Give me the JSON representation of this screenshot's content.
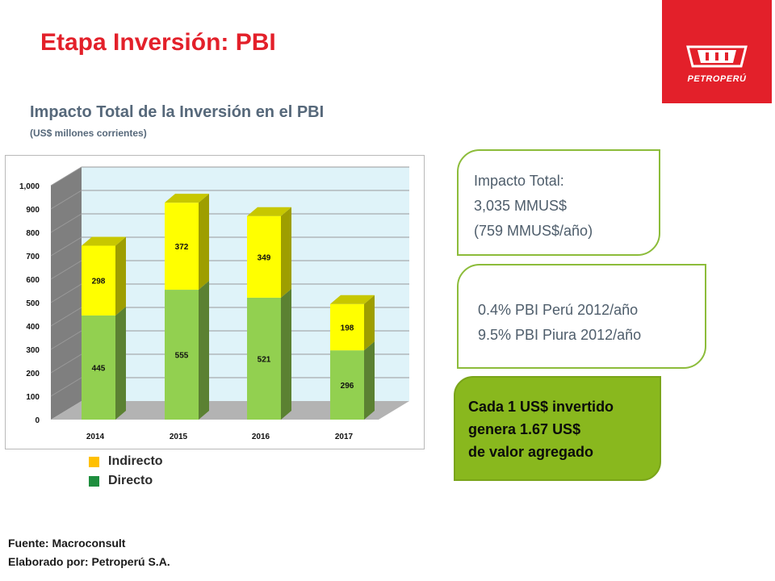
{
  "slide": {
    "title": "Etapa Inversión: PBI",
    "logo_text": "PETROPERÚ"
  },
  "chart_data": {
    "type": "bar",
    "stacked": true,
    "three_d": true,
    "title": "Impacto Total de la Inversión en el PBI",
    "subtitle": "(US$ millones corrientes)",
    "categories": [
      "2014",
      "2015",
      "2016",
      "2017"
    ],
    "series": [
      {
        "name": "Directo",
        "values": [
          445,
          555,
          521,
          296
        ],
        "color": "#92d050"
      },
      {
        "name": "Indirecto",
        "values": [
          298,
          372,
          349,
          198
        ],
        "color": "#ffff00"
      }
    ],
    "ylim": [
      0,
      1000
    ],
    "y_ticks": [
      "0",
      "100",
      "200",
      "300",
      "400",
      "500",
      "600",
      "700",
      "800",
      "900",
      "1,000"
    ],
    "grid": true,
    "legend": [
      {
        "label": "Indirecto",
        "color": "#ffc000"
      },
      {
        "label": "Directo",
        "color": "#1e8e3e"
      }
    ],
    "legend_position": "bottom"
  },
  "boxes": {
    "total": {
      "lines": [
        "Impacto Total:",
        "3,035 MMUS$",
        "(759 MMUS$/año)"
      ]
    },
    "pbi": {
      "lines": [
        "0.4%  PBI Perú 2012/año",
        "9.5% PBI Piura 2012/año"
      ]
    },
    "valor": {
      "lines": [
        "Cada 1 US$ invertido",
        "genera 1.67  US$",
        "de valor agregado"
      ]
    }
  },
  "footer": {
    "source": "Fuente: Macroconsult",
    "prepared_by": "Elaborado por: Petroperú S.A."
  }
}
